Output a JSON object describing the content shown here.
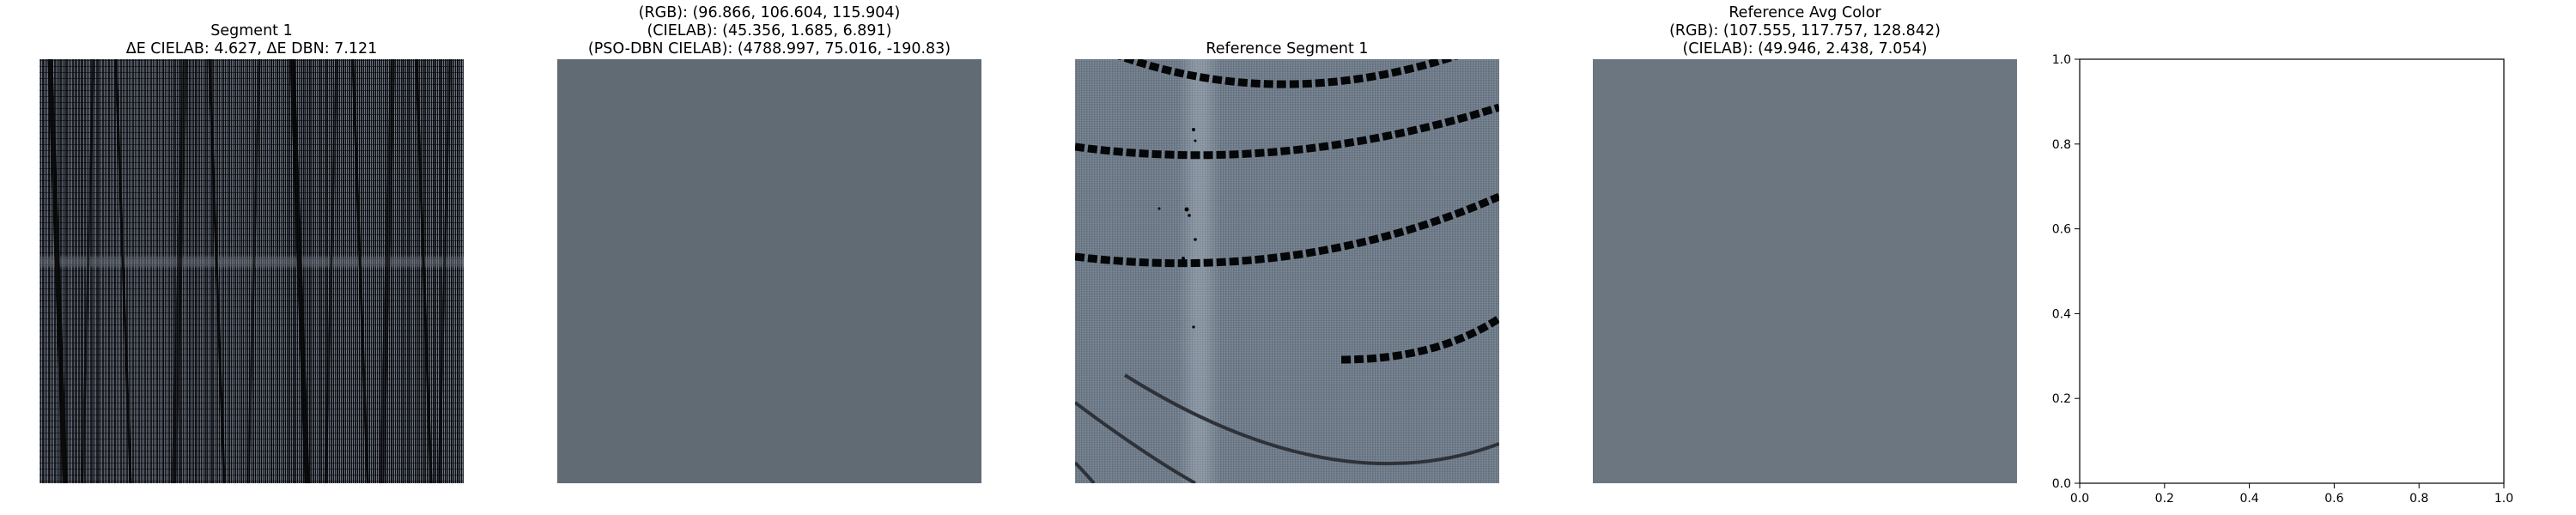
{
  "panels": [
    {
      "title_lines": [
        "Segment 1",
        "ΔE CIELAB: 4.627, ΔE DBN: 7.121"
      ]
    },
    {
      "title_lines": [
        "(RGB): (96.866, 106.604, 115.904)",
        "(CIELAB): (45.356, 1.685, 6.891)",
        "(PSO-DBN CIELAB): (4788.997, 75.016, -190.83)"
      ],
      "swatch_color": "#616b74"
    },
    {
      "title_lines": [
        "Reference Segment 1"
      ]
    },
    {
      "title_lines": [
        "Reference Avg Color",
        "(RGB): (107.555, 117.757, 128.842)",
        "(CIELAB): (49.946, 2.438, 7.054)"
      ],
      "swatch_color": "#6c7681"
    }
  ],
  "chart_data": {
    "type": "scatter",
    "series": [],
    "xlim": [
      0,
      1
    ],
    "ylim": [
      0,
      1
    ],
    "x_ticks": [
      "0.0",
      "0.2",
      "0.4",
      "0.6",
      "0.8",
      "1.0"
    ],
    "y_ticks": [
      "0.0",
      "0.2",
      "0.4",
      "0.6",
      "0.8",
      "1.0"
    ],
    "title": "",
    "xlabel": "",
    "ylabel": "",
    "grid": false
  }
}
